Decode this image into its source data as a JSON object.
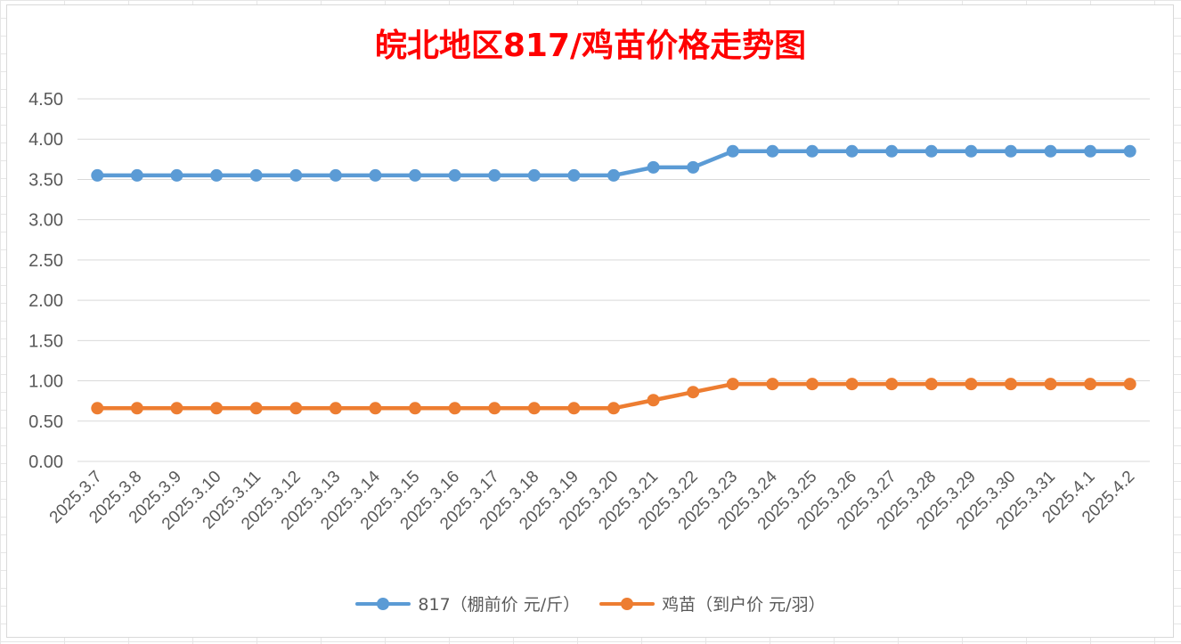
{
  "chart_data": {
    "type": "line",
    "title": "皖北地区817/鸡苗价格走势图",
    "xlabel": "",
    "ylabel": "",
    "ylim": [
      0,
      4.5
    ],
    "yticks": [
      "0.00",
      "0.50",
      "1.00",
      "1.50",
      "2.00",
      "2.50",
      "3.00",
      "3.50",
      "4.00",
      "4.50"
    ],
    "grid": true,
    "legend_position": "bottom",
    "categories": [
      "2025.3.7",
      "2025.3.8",
      "2025.3.9",
      "2025.3.10",
      "2025.3.11",
      "2025.3.12",
      "2025.3.13",
      "2025.3.14",
      "2025.3.15",
      "2025.3.16",
      "2025.3.17",
      "2025.3.18",
      "2025.3.19",
      "2025.3.20",
      "2025.3.21",
      "2025.3.22",
      "2025.3.23",
      "2025.3.24",
      "2025.3.25",
      "2025.3.26",
      "2025.3.27",
      "2025.3.28",
      "2025.3.29",
      "2025.3.30",
      "2025.3.31",
      "2025.4.1",
      "2025.4.2"
    ],
    "series": [
      {
        "name": "817（棚前价 元/斤）",
        "color": "#5b9bd5",
        "values": [
          3.55,
          3.55,
          3.55,
          3.55,
          3.55,
          3.55,
          3.55,
          3.55,
          3.55,
          3.55,
          3.55,
          3.55,
          3.55,
          3.55,
          3.65,
          3.65,
          3.85,
          3.85,
          3.85,
          3.85,
          3.85,
          3.85,
          3.85,
          3.85,
          3.85,
          3.85,
          3.85
        ]
      },
      {
        "name": "鸡苗（到户价 元/羽）",
        "color": "#ed7d31",
        "values": [
          0.66,
          0.66,
          0.66,
          0.66,
          0.66,
          0.66,
          0.66,
          0.66,
          0.66,
          0.66,
          0.66,
          0.66,
          0.66,
          0.66,
          0.76,
          0.86,
          0.96,
          0.96,
          0.96,
          0.96,
          0.96,
          0.96,
          0.96,
          0.96,
          0.96,
          0.96,
          0.96
        ]
      }
    ]
  }
}
